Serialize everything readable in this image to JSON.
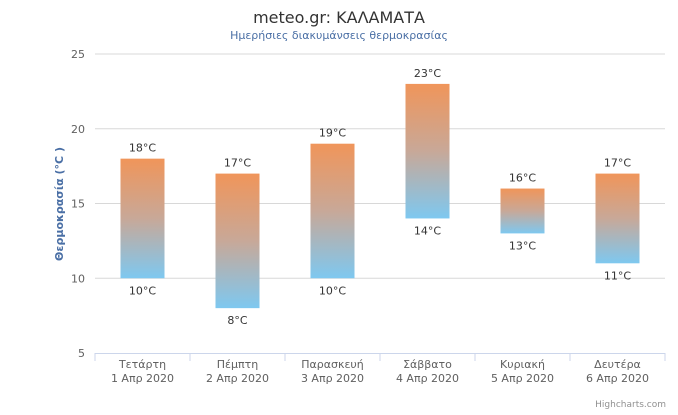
{
  "chart_data": {
    "type": "bar",
    "title": "meteo.gr: ΚΑΛΑΜΑΤΑ",
    "subtitle": "Ημερήσιες διακυμάνσεις θερμοκρασίας",
    "ylabel": "Θερμοκρασία (°C )",
    "ylim": [
      5,
      25
    ],
    "yticks": [
      "5",
      "10",
      "15",
      "20",
      "25"
    ],
    "yticks_values": [
      5,
      10,
      15,
      20,
      25
    ],
    "grid": true,
    "categories": [
      {
        "day": "Τετάρτη",
        "date": "1 Απρ 2020"
      },
      {
        "day": "Πέμπτη",
        "date": "2 Απρ 2020"
      },
      {
        "day": "Παρασκευή",
        "date": "3 Απρ 2020"
      },
      {
        "day": "Σάββατο",
        "date": "4 Απρ 2020"
      },
      {
        "day": "Κυριακή",
        "date": "5 Απρ 2020"
      },
      {
        "day": "Δευτέρα",
        "date": "6 Απρ 2020"
      }
    ],
    "series": [
      {
        "low": [
          10,
          8,
          10,
          14,
          13,
          11
        ],
        "high": [
          18,
          17,
          19,
          23,
          16,
          17
        ],
        "low_labels": [
          "10°C",
          "8°C",
          "10°C",
          "14°C",
          "13°C",
          "11°C"
        ],
        "high_labels": [
          "18°C",
          "17°C",
          "19°C",
          "23°C",
          "16°C",
          "17°C"
        ]
      }
    ],
    "colors": {
      "top": "#f0955a",
      "bottom": "#7ec8f0",
      "grid": "#d8d8d8",
      "axis": "#ccd6eb"
    }
  },
  "credits": "Highcharts.com"
}
